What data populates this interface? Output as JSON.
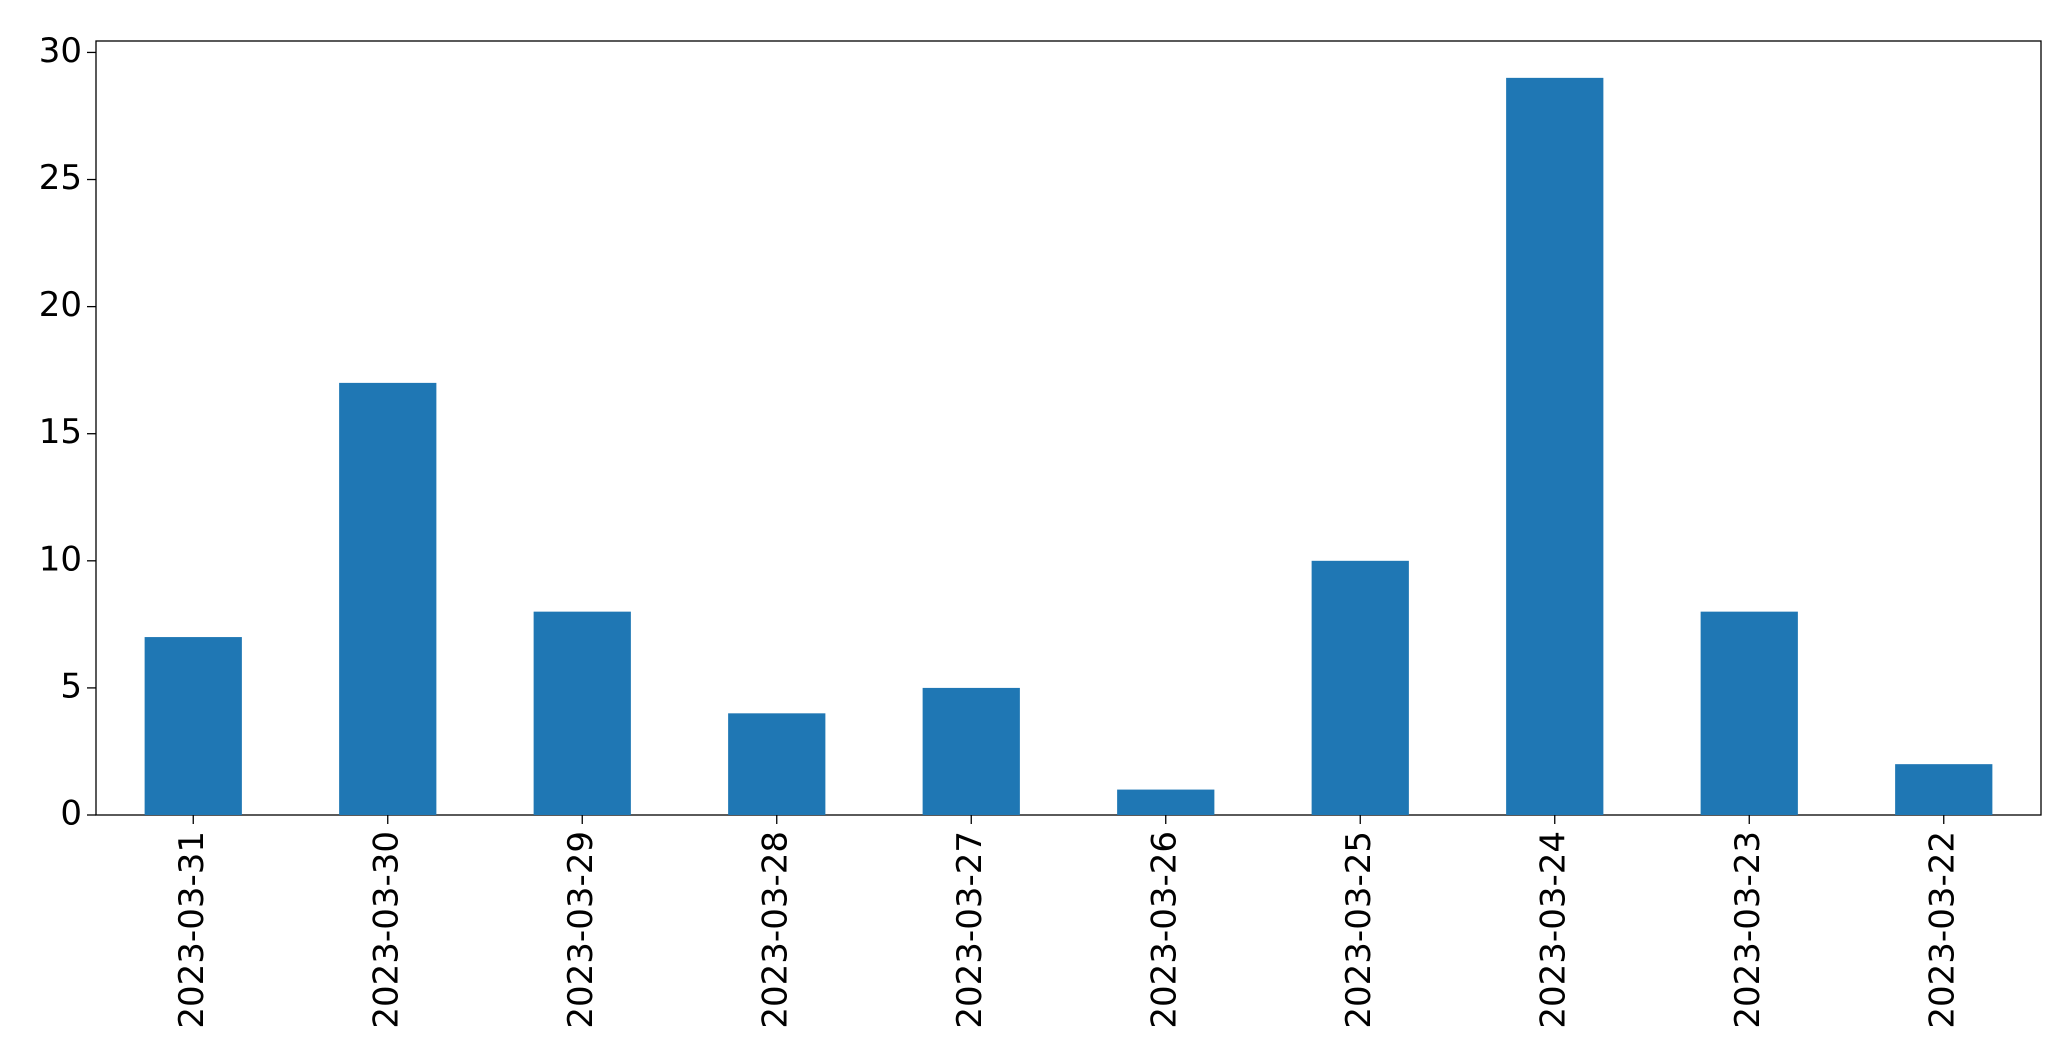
{
  "chart_data": {
    "type": "bar",
    "categories": [
      "2023-03-31",
      "2023-03-30",
      "2023-03-29",
      "2023-03-28",
      "2023-03-27",
      "2023-03-26",
      "2023-03-25",
      "2023-03-24",
      "2023-03-23",
      "2023-03-22"
    ],
    "values": [
      7,
      17,
      8,
      4,
      5,
      1,
      10,
      29,
      8,
      2
    ],
    "color": "#1f77b4",
    "ylim": [
      0,
      30.45
    ],
    "yticks": [
      0,
      5,
      10,
      15,
      20,
      25,
      30
    ],
    "grid": false
  }
}
